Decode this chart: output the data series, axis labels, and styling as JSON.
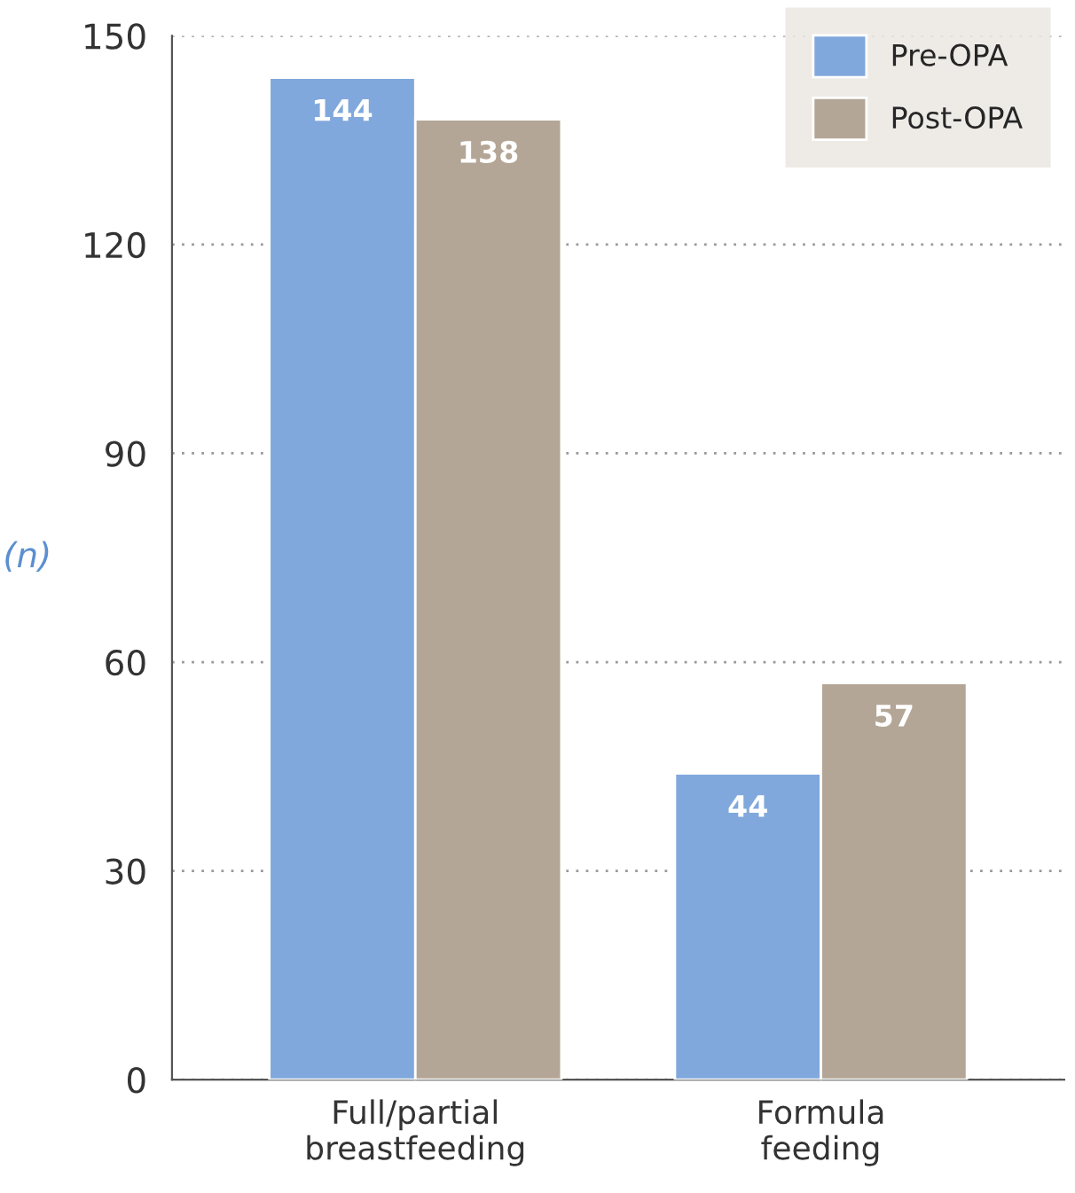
{
  "chart_data": {
    "type": "bar",
    "ylabel": "(n)",
    "categories": [
      "Full/partial\nbreastfeeding",
      "Formula\nfeeding"
    ],
    "series": [
      {
        "name": "Pre-OPA",
        "color": "#80a8dc",
        "values": [
          144,
          44
        ]
      },
      {
        "name": "Post-OPA",
        "color": "#b4a696",
        "values": [
          138,
          57
        ]
      }
    ],
    "ylim": [
      0,
      150
    ],
    "yticks": [
      0,
      30,
      60,
      90,
      120,
      150
    ],
    "grid": "y",
    "legend": "top right",
    "data_labels": true
  }
}
